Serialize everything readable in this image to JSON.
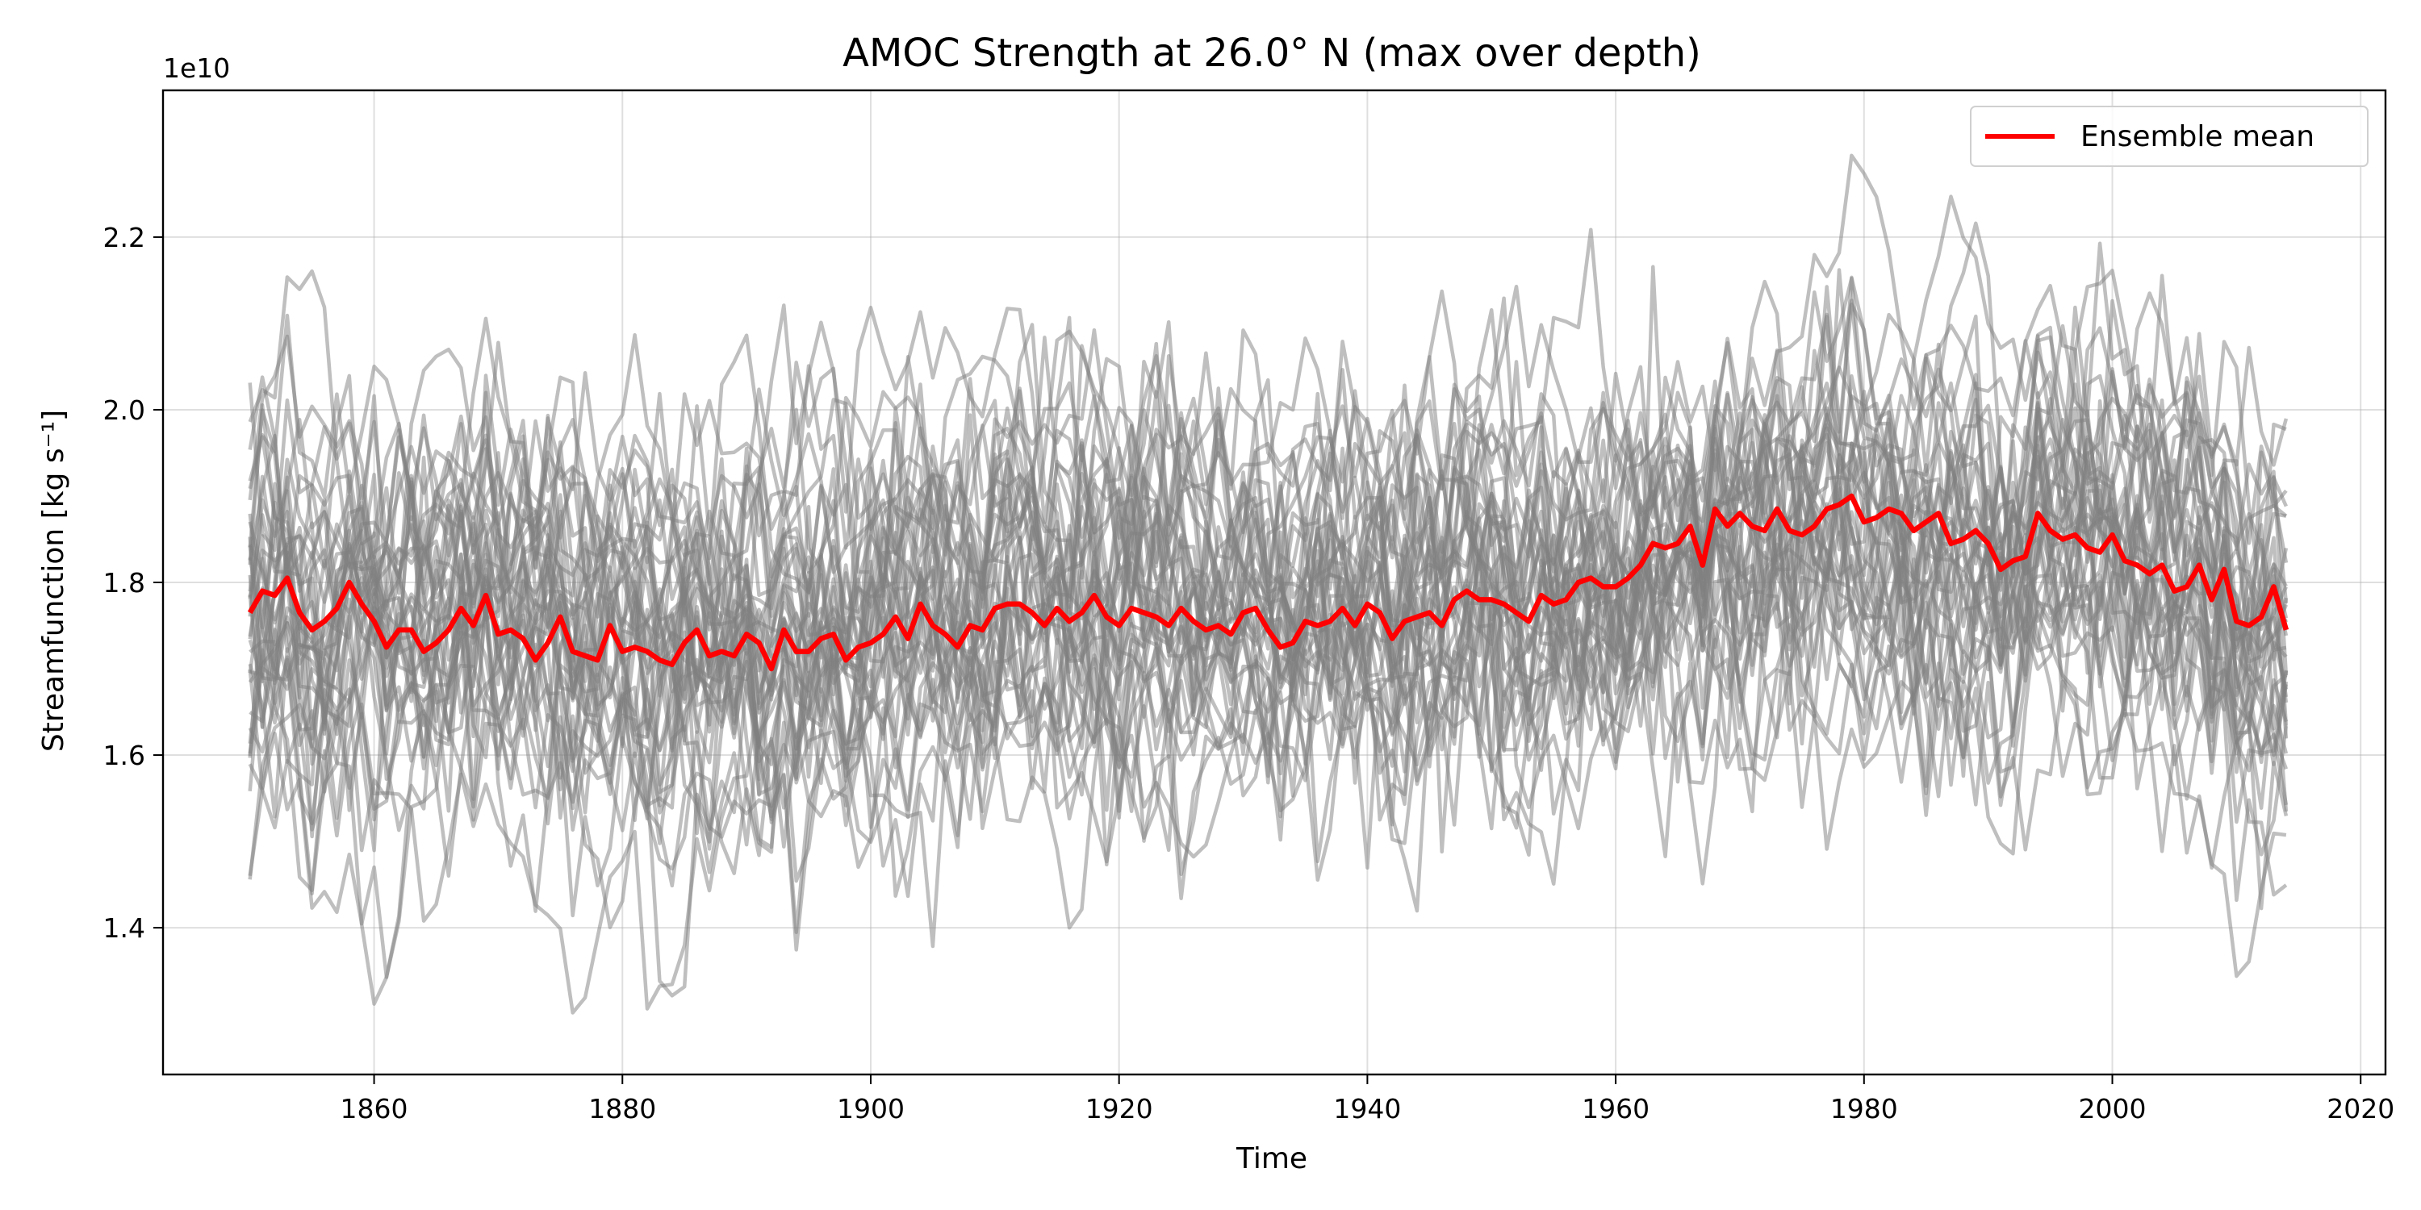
{
  "chart_data": {
    "type": "line",
    "title": "AMOC Strength at 26.0° N (max over depth)",
    "xlabel": "Time",
    "ylabel": "Streamfunction [kg s⁻¹]",
    "y_offset_label": "1e10",
    "xlim": [
      1843,
      2022
    ],
    "ylim": [
      1.23,
      2.37
    ],
    "x_ticks": [
      1860,
      1880,
      1900,
      1920,
      1940,
      1960,
      1980,
      2000,
      2020
    ],
    "y_ticks": [
      1.4,
      1.6,
      1.8,
      2.0,
      2.2
    ],
    "y_tick_labels": [
      "1.4",
      "1.6",
      "1.8",
      "2.0",
      "2.2"
    ],
    "grid": true,
    "legend_position": "upper-right",
    "legend": [
      "Ensemble mean"
    ],
    "colors": {
      "members": "#808080",
      "mean": "#ff0000"
    },
    "members_count": 40,
    "members_spread": 0.12,
    "x_start": 1850,
    "x_end": 2014,
    "mean_series": {
      "name": "Ensemble mean",
      "values": [
        1.765,
        1.79,
        1.785,
        1.805,
        1.765,
        1.745,
        1.755,
        1.77,
        1.8,
        1.775,
        1.755,
        1.725,
        1.745,
        1.745,
        1.72,
        1.73,
        1.745,
        1.77,
        1.75,
        1.785,
        1.74,
        1.745,
        1.735,
        1.71,
        1.73,
        1.76,
        1.72,
        1.715,
        1.71,
        1.75,
        1.72,
        1.725,
        1.72,
        1.71,
        1.705,
        1.73,
        1.745,
        1.715,
        1.72,
        1.715,
        1.74,
        1.73,
        1.7,
        1.745,
        1.72,
        1.72,
        1.735,
        1.74,
        1.71,
        1.725,
        1.73,
        1.74,
        1.76,
        1.735,
        1.775,
        1.75,
        1.74,
        1.725,
        1.75,
        1.745,
        1.77,
        1.775,
        1.775,
        1.765,
        1.75,
        1.77,
        1.755,
        1.765,
        1.785,
        1.76,
        1.75,
        1.77,
        1.765,
        1.76,
        1.75,
        1.77,
        1.755,
        1.745,
        1.75,
        1.74,
        1.765,
        1.77,
        1.745,
        1.725,
        1.73,
        1.755,
        1.75,
        1.755,
        1.77,
        1.75,
        1.775,
        1.765,
        1.735,
        1.755,
        1.76,
        1.765,
        1.75,
        1.78,
        1.79,
        1.78,
        1.78,
        1.775,
        1.765,
        1.755,
        1.785,
        1.775,
        1.78,
        1.8,
        1.805,
        1.795,
        1.795,
        1.805,
        1.82,
        1.845,
        1.84,
        1.845,
        1.865,
        1.82,
        1.885,
        1.865,
        1.88,
        1.865,
        1.86,
        1.885,
        1.86,
        1.855,
        1.865,
        1.885,
        1.89,
        1.9,
        1.87,
        1.875,
        1.885,
        1.88,
        1.86,
        1.87,
        1.88,
        1.845,
        1.85,
        1.86,
        1.845,
        1.815,
        1.825,
        1.83,
        1.88,
        1.86,
        1.85,
        1.855,
        1.84,
        1.835,
        1.855,
        1.825,
        1.82,
        1.81,
        1.82,
        1.79,
        1.795,
        1.82,
        1.78,
        1.815,
        1.755,
        1.75,
        1.76,
        1.795,
        1.745
      ]
    }
  }
}
